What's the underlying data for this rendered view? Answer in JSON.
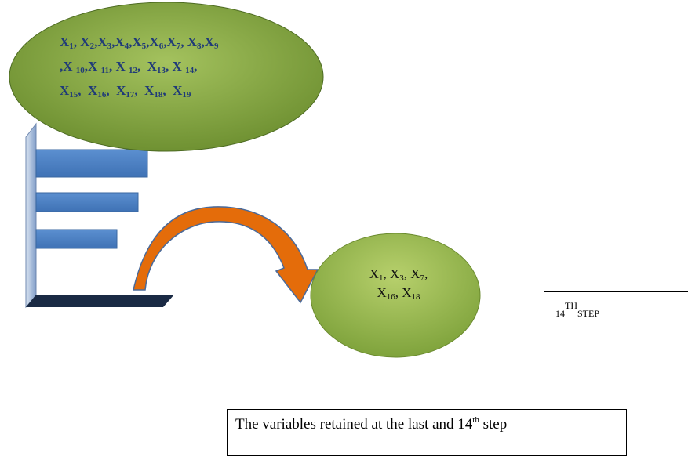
{
  "all_variables": {
    "line1": [
      {
        "base": "X",
        "sub": "1",
        "sep": ", "
      },
      {
        "base": "X",
        "sub": "2",
        "sep": ","
      },
      {
        "base": "X",
        "sub": "3",
        "sep": ","
      },
      {
        "base": "X",
        "sub": "4",
        "sep": ","
      },
      {
        "base": "X",
        "sub": "5",
        "sep": ","
      },
      {
        "base": "X",
        "sub": "6",
        "sep": ","
      },
      {
        "base": "X",
        "sub": "7",
        "sep": ", "
      },
      {
        "base": "X",
        "sub": "8",
        "sep": ","
      },
      {
        "base": "X",
        "sub": "9",
        "sep": ""
      }
    ],
    "line2_prefix": ",",
    "line2": [
      {
        "base": "X ",
        "sub": "10",
        "sep": ","
      },
      {
        "base": "X ",
        "sub": "11",
        "sep": ", "
      },
      {
        "base": "X ",
        "sub": "12",
        "sep": ",  "
      },
      {
        "base": "X",
        "sub": "13",
        "sep": ", "
      },
      {
        "base": "X ",
        "sub": "14",
        "sep": ","
      }
    ],
    "line3": [
      {
        "base": "X",
        "sub": "15",
        "sep": ",  "
      },
      {
        "base": "X",
        "sub": "16",
        "sep": ",  "
      },
      {
        "base": "X",
        "sub": "17",
        "sep": ",  "
      },
      {
        "base": "X",
        "sub": "18",
        "sep": ",  "
      },
      {
        "base": "X",
        "sub": "19",
        "sep": ""
      }
    ]
  },
  "retained_variables": {
    "line1": [
      {
        "base": "X",
        "sub": "1",
        "sep": ", "
      },
      {
        "base": "X",
        "sub": "3",
        "sep": ", "
      },
      {
        "base": "X",
        "sub": "7",
        "sep": ","
      }
    ],
    "line2": [
      {
        "base": "X",
        "sub": "16",
        "sep": ", "
      },
      {
        "base": "X",
        "sub": "18",
        "sep": ""
      }
    ]
  },
  "step_box": {
    "number": "14",
    "superscript": "TH",
    "word": "STEP"
  },
  "caption": {
    "before": "The variables retained at the last and 14",
    "superscript": "th",
    "after": " step"
  },
  "colors": {
    "ellipse_green": "#8fb04c",
    "ellipse_green_dark": "#6d8f33",
    "variable_text_blue": "#1f3a78",
    "bar_blue": "#4f81bd",
    "bar_blue_edge": "#3a67a0",
    "arrow_orange": "#e46c0a",
    "arrow_edge": "#4a6a9a",
    "wall_navy": "#1a2a44",
    "wall_light": "#b8c8e0"
  }
}
